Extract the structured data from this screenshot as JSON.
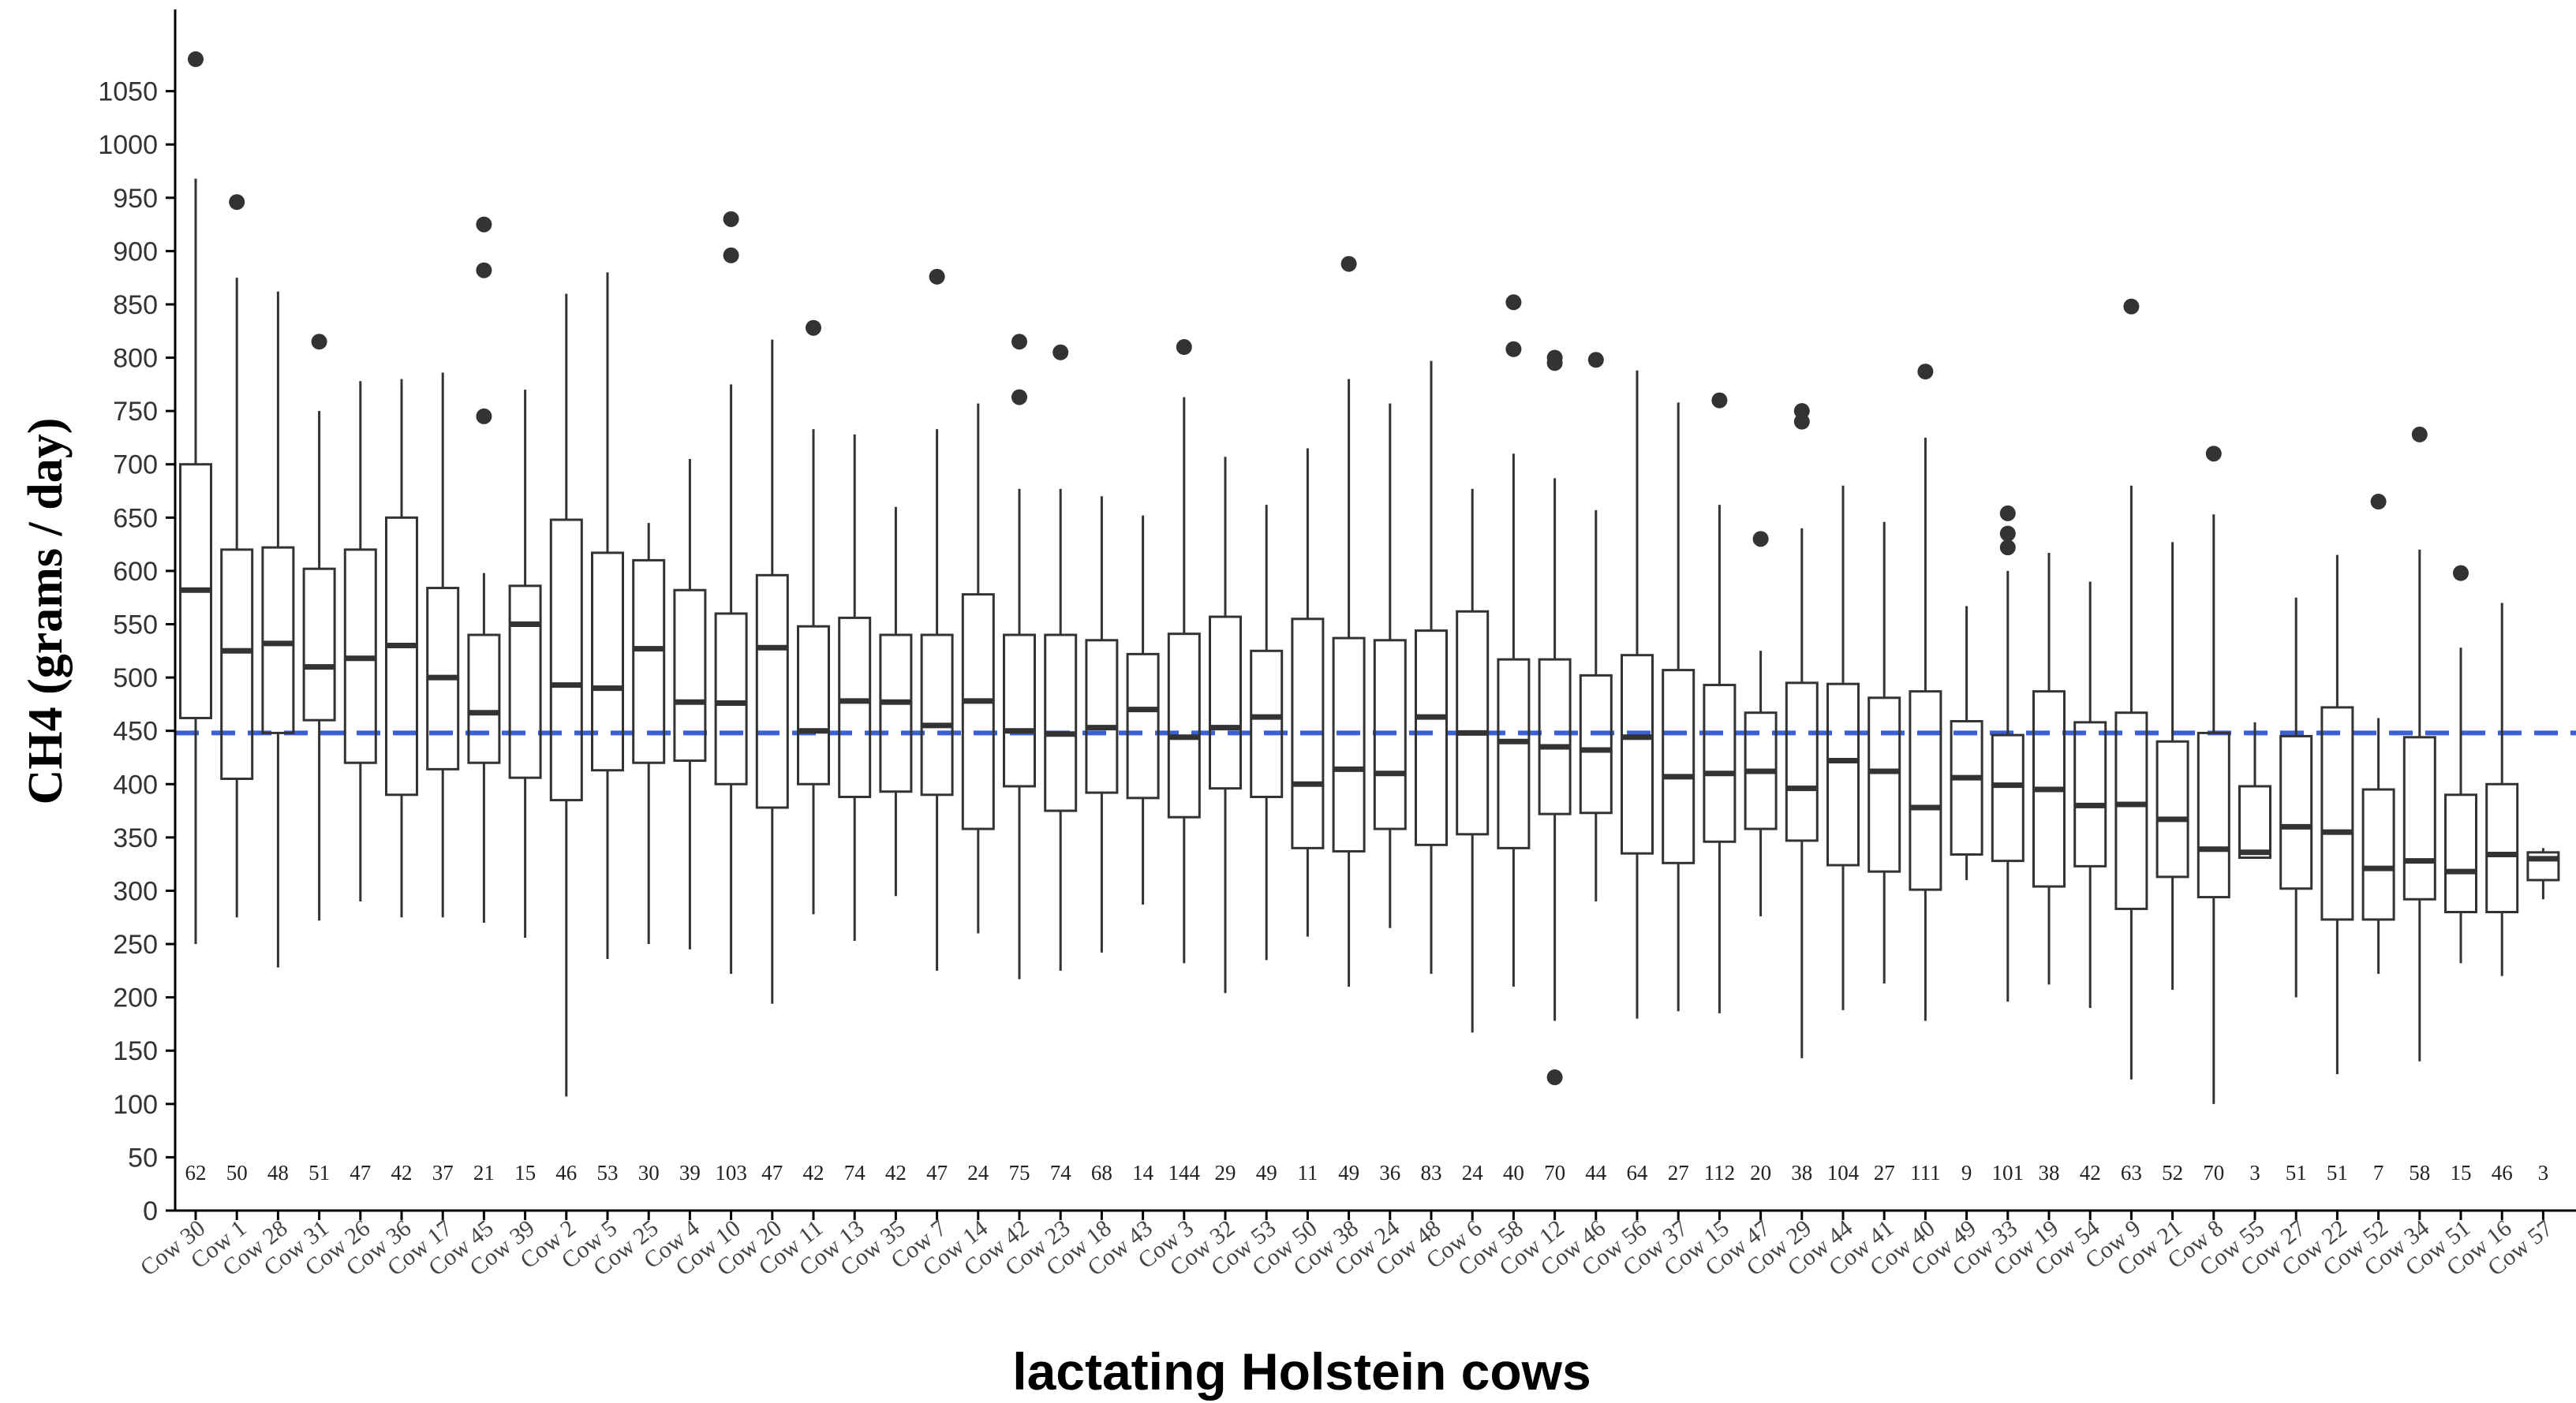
{
  "chart_data": {
    "type": "box",
    "ylabel": "CH4 (grams / day)",
    "xlabel": "lactating Holstein cows",
    "ylim": [
      0,
      1100
    ],
    "yticks": [
      0,
      50,
      100,
      150,
      200,
      250,
      300,
      350,
      400,
      450,
      500,
      550,
      600,
      650,
      700,
      750,
      800,
      850,
      900,
      950,
      1000,
      1050
    ],
    "reference_line": {
      "y": 448,
      "style": "dashed",
      "color": "#3a5fd6"
    },
    "box_color": "#333333",
    "boxes": [
      {
        "cow": "Cow 30",
        "n": "62",
        "min": 250,
        "q1": 462,
        "median": 582,
        "q3": 700,
        "max": 968,
        "outliers": [
          1080
        ]
      },
      {
        "cow": "Cow 1",
        "n": "50",
        "min": 275,
        "q1": 405,
        "median": 525,
        "q3": 620,
        "max": 875,
        "outliers": [
          946
        ]
      },
      {
        "cow": "Cow 28",
        "n": "48",
        "min": 228,
        "q1": 448,
        "median": 532,
        "q3": 622,
        "max": 862,
        "outliers": []
      },
      {
        "cow": "Cow 31",
        "n": "51",
        "min": 272,
        "q1": 460,
        "median": 510,
        "q3": 602,
        "max": 750,
        "outliers": [
          815
        ]
      },
      {
        "cow": "Cow 26",
        "n": "47",
        "min": 290,
        "q1": 420,
        "median": 518,
        "q3": 620,
        "max": 778,
        "outliers": []
      },
      {
        "cow": "Cow 36",
        "n": "42",
        "min": 275,
        "q1": 390,
        "median": 530,
        "q3": 650,
        "max": 780,
        "outliers": []
      },
      {
        "cow": "Cow 17",
        "n": "37",
        "min": 275,
        "q1": 414,
        "median": 500,
        "q3": 584,
        "max": 786,
        "outliers": []
      },
      {
        "cow": "Cow 45",
        "n": "21",
        "min": 270,
        "q1": 420,
        "median": 467,
        "q3": 540,
        "max": 598,
        "outliers": [
          745,
          882,
          925
        ]
      },
      {
        "cow": "Cow 39",
        "n": "15",
        "min": 256,
        "q1": 406,
        "median": 550,
        "q3": 586,
        "max": 770,
        "outliers": []
      },
      {
        "cow": "Cow 2",
        "n": "46",
        "min": 107,
        "q1": 385,
        "median": 493,
        "q3": 648,
        "max": 860,
        "outliers": []
      },
      {
        "cow": "Cow 5",
        "n": "53",
        "min": 236,
        "q1": 413,
        "median": 490,
        "q3": 617,
        "max": 880,
        "outliers": []
      },
      {
        "cow": "Cow 25",
        "n": "30",
        "min": 250,
        "q1": 420,
        "median": 527,
        "q3": 610,
        "max": 645,
        "outliers": []
      },
      {
        "cow": "Cow 4",
        "n": "39",
        "min": 245,
        "q1": 422,
        "median": 477,
        "q3": 582,
        "max": 705,
        "outliers": []
      },
      {
        "cow": "Cow 10",
        "n": "103",
        "min": 222,
        "q1": 400,
        "median": 476,
        "q3": 560,
        "max": 775,
        "outliers": [
          896,
          930
        ]
      },
      {
        "cow": "Cow 20",
        "n": "47",
        "min": 194,
        "q1": 378,
        "median": 528,
        "q3": 596,
        "max": 817,
        "outliers": []
      },
      {
        "cow": "Cow 11",
        "n": "42",
        "min": 278,
        "q1": 400,
        "median": 450,
        "q3": 548,
        "max": 733,
        "outliers": [
          828
        ]
      },
      {
        "cow": "Cow 13",
        "n": "74",
        "min": 253,
        "q1": 388,
        "median": 478,
        "q3": 556,
        "max": 728,
        "outliers": []
      },
      {
        "cow": "Cow 35",
        "n": "42",
        "min": 295,
        "q1": 393,
        "median": 477,
        "q3": 540,
        "max": 660,
        "outliers": []
      },
      {
        "cow": "Cow 7",
        "n": "47",
        "min": 225,
        "q1": 390,
        "median": 455,
        "q3": 540,
        "max": 733,
        "outliers": [
          876
        ]
      },
      {
        "cow": "Cow 14",
        "n": "24",
        "min": 260,
        "q1": 358,
        "median": 478,
        "q3": 578,
        "max": 757,
        "outliers": []
      },
      {
        "cow": "Cow 42",
        "n": "75",
        "min": 217,
        "q1": 398,
        "median": 450,
        "q3": 540,
        "max": 677,
        "outliers": [
          763,
          815
        ]
      },
      {
        "cow": "Cow 23",
        "n": "74",
        "min": 225,
        "q1": 375,
        "median": 447,
        "q3": 540,
        "max": 677,
        "outliers": [
          805
        ]
      },
      {
        "cow": "Cow 18",
        "n": "68",
        "min": 242,
        "q1": 392,
        "median": 453,
        "q3": 535,
        "max": 670,
        "outliers": []
      },
      {
        "cow": "Cow 43",
        "n": "14",
        "min": 287,
        "q1": 387,
        "median": 470,
        "q3": 522,
        "max": 652,
        "outliers": []
      },
      {
        "cow": "Cow 3",
        "n": "144",
        "min": 232,
        "q1": 369,
        "median": 444,
        "q3": 541,
        "max": 763,
        "outliers": [
          810
        ]
      },
      {
        "cow": "Cow 32",
        "n": "29",
        "min": 204,
        "q1": 396,
        "median": 453,
        "q3": 557,
        "max": 707,
        "outliers": []
      },
      {
        "cow": "Cow 53",
        "n": "49",
        "min": 235,
        "q1": 388,
        "median": 463,
        "q3": 525,
        "max": 662,
        "outliers": []
      },
      {
        "cow": "Cow 50",
        "n": "11",
        "min": 257,
        "q1": 340,
        "median": 400,
        "q3": 555,
        "max": 715,
        "outliers": []
      },
      {
        "cow": "Cow 38",
        "n": "49",
        "min": 210,
        "q1": 337,
        "median": 414,
        "q3": 537,
        "max": 780,
        "outliers": [
          888
        ]
      },
      {
        "cow": "Cow 24",
        "n": "36",
        "min": 265,
        "q1": 358,
        "median": 410,
        "q3": 535,
        "max": 757,
        "outliers": []
      },
      {
        "cow": "Cow 48",
        "n": "83",
        "min": 222,
        "q1": 343,
        "median": 463,
        "q3": 544,
        "max": 797,
        "outliers": []
      },
      {
        "cow": "Cow 6",
        "n": "24",
        "min": 167,
        "q1": 353,
        "median": 448,
        "q3": 562,
        "max": 677,
        "outliers": []
      },
      {
        "cow": "Cow 58",
        "n": "40",
        "min": 210,
        "q1": 340,
        "median": 440,
        "q3": 517,
        "max": 710,
        "outliers": [
          808,
          852
        ]
      },
      {
        "cow": "Cow 12",
        "n": "70",
        "min": 178,
        "q1": 372,
        "median": 435,
        "q3": 517,
        "max": 687,
        "outliers": [
          125,
          795,
          800
        ]
      },
      {
        "cow": "Cow 46",
        "n": "44",
        "min": 290,
        "q1": 373,
        "median": 432,
        "q3": 502,
        "max": 657,
        "outliers": [
          798
        ]
      },
      {
        "cow": "Cow 56",
        "n": "64",
        "min": 180,
        "q1": 335,
        "median": 444,
        "q3": 521,
        "max": 788,
        "outliers": []
      },
      {
        "cow": "Cow 37",
        "n": "27",
        "min": 187,
        "q1": 326,
        "median": 407,
        "q3": 507,
        "max": 758,
        "outliers": []
      },
      {
        "cow": "Cow 15",
        "n": "112",
        "min": 185,
        "q1": 346,
        "median": 410,
        "q3": 493,
        "max": 662,
        "outliers": [
          760
        ]
      },
      {
        "cow": "Cow 47",
        "n": "20",
        "min": 276,
        "q1": 358,
        "median": 412,
        "q3": 467,
        "max": 525,
        "outliers": [
          630
        ]
      },
      {
        "cow": "Cow 29",
        "n": "38",
        "min": 143,
        "q1": 347,
        "median": 396,
        "q3": 495,
        "max": 640,
        "outliers": [
          740,
          750
        ]
      },
      {
        "cow": "Cow 44",
        "n": "104",
        "min": 188,
        "q1": 324,
        "median": 422,
        "q3": 494,
        "max": 680,
        "outliers": []
      },
      {
        "cow": "Cow 41",
        "n": "27",
        "min": 213,
        "q1": 318,
        "median": 412,
        "q3": 481,
        "max": 646,
        "outliers": []
      },
      {
        "cow": "Cow 40",
        "n": "111",
        "min": 178,
        "q1": 301,
        "median": 378,
        "q3": 487,
        "max": 725,
        "outliers": [
          787
        ]
      },
      {
        "cow": "Cow 49",
        "n": "9",
        "min": 310,
        "q1": 334,
        "median": 406,
        "q3": 459,
        "max": 567,
        "outliers": []
      },
      {
        "cow": "Cow 33",
        "n": "101",
        "min": 196,
        "q1": 328,
        "median": 399,
        "q3": 446,
        "max": 600,
        "outliers": [
          622,
          635,
          654
        ]
      },
      {
        "cow": "Cow 19",
        "n": "38",
        "min": 212,
        "q1": 304,
        "median": 395,
        "q3": 487,
        "max": 617,
        "outliers": []
      },
      {
        "cow": "Cow 54",
        "n": "42",
        "min": 190,
        "q1": 323,
        "median": 380,
        "q3": 458,
        "max": 590,
        "outliers": []
      },
      {
        "cow": "Cow 9",
        "n": "63",
        "min": 123,
        "q1": 283,
        "median": 381,
        "q3": 467,
        "max": 680,
        "outliers": [
          848
        ]
      },
      {
        "cow": "Cow 21",
        "n": "52",
        "min": 207,
        "q1": 313,
        "median": 367,
        "q3": 440,
        "max": 627,
        "outliers": []
      },
      {
        "cow": "Cow 8",
        "n": "70",
        "min": 100,
        "q1": 294,
        "median": 339,
        "q3": 448,
        "max": 653,
        "outliers": [
          710
        ]
      },
      {
        "cow": "Cow 55",
        "n": "3",
        "min": 330,
        "q1": 331,
        "median": 336,
        "q3": 398,
        "max": 458,
        "outliers": []
      },
      {
        "cow": "Cow 27",
        "n": "51",
        "min": 200,
        "q1": 302,
        "median": 360,
        "q3": 445,
        "max": 575,
        "outliers": []
      },
      {
        "cow": "Cow 22",
        "n": "51",
        "min": 128,
        "q1": 273,
        "median": 355,
        "q3": 472,
        "max": 615,
        "outliers": []
      },
      {
        "cow": "Cow 52",
        "n": "7",
        "min": 222,
        "q1": 273,
        "median": 321,
        "q3": 395,
        "max": 462,
        "outliers": [
          665
        ]
      },
      {
        "cow": "Cow 34",
        "n": "58",
        "min": 140,
        "q1": 292,
        "median": 328,
        "q3": 444,
        "max": 620,
        "outliers": [
          728
        ]
      },
      {
        "cow": "Cow 51",
        "n": "15",
        "min": 232,
        "q1": 280,
        "median": 318,
        "q3": 390,
        "max": 528,
        "outliers": [
          598
        ]
      },
      {
        "cow": "Cow 16",
        "n": "46",
        "min": 220,
        "q1": 280,
        "median": 334,
        "q3": 400,
        "max": 570,
        "outliers": []
      },
      {
        "cow": "Cow 57",
        "n": "3",
        "min": 292,
        "q1": 310,
        "median": 330,
        "q3": 336,
        "max": 340,
        "outliers": []
      }
    ]
  }
}
